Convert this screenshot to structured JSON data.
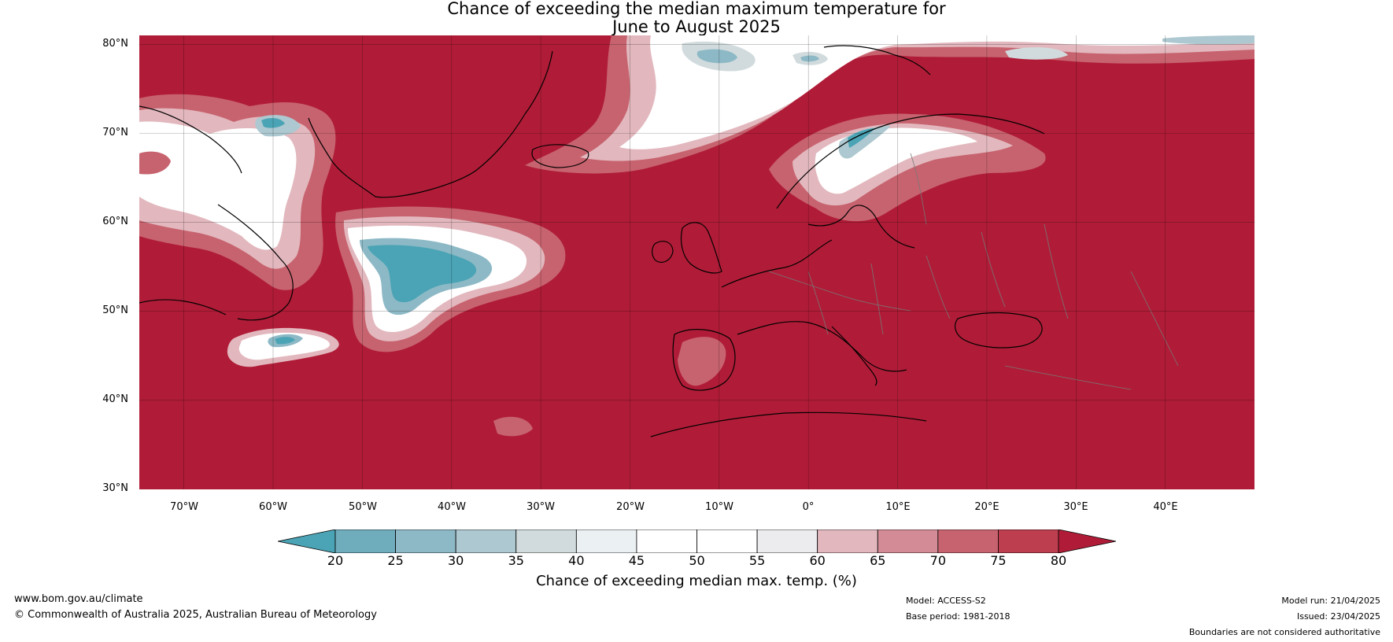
{
  "title_line1": "Chance of exceeding the median maximum temperature for",
  "title_line2": "June to August 2025",
  "latitude_labels": [
    "80°N",
    "70°N",
    "60°N",
    "50°N",
    "40°N",
    "30°N"
  ],
  "longitude_labels": [
    "70°W",
    "60°W",
    "50°W",
    "40°W",
    "30°W",
    "20°W",
    "10°W",
    "0°",
    "10°E",
    "20°E",
    "30°E",
    "40°E"
  ],
  "map": {
    "extent": {
      "lon_min": -75,
      "lon_max": 50,
      "lat_min": 30,
      "lat_max": 81
    },
    "dominant_category": "above 80%",
    "background_color": "#b01c37",
    "borders_color": "#777777",
    "coast_color": "#000000"
  },
  "colorbar": {
    "ticks": [
      "20",
      "25",
      "30",
      "35",
      "40",
      "45",
      "50",
      "55",
      "60",
      "65",
      "70",
      "75",
      "80"
    ],
    "colors": [
      "#4ba4b5",
      "#6fadbd",
      "#8db9c6",
      "#adc8d0",
      "#d1dbdd",
      "#ebf1f3",
      "#ffffff",
      "#ffffff",
      "#ecebed",
      "#e2b8be",
      "#d38b95",
      "#c7636f",
      "#bc3e4f",
      "#b01c37"
    ],
    "under_color": "#4ba4b5",
    "over_color": "#b01c37",
    "label": "Chance of exceeding median max. temp. (%)"
  },
  "footer": {
    "website": "www.bom.gov.au/climate",
    "copyright": "© Commonwealth of Australia 2025, Australian Bureau of Meteorology",
    "model": "Model: ACCESS-S2",
    "base_period": "Base period: 1981-2018",
    "model_run": "Model run: 21/04/2025",
    "issued": "Issued: 23/04/2025",
    "disclaimer": "Boundaries are not considered authoritative"
  }
}
